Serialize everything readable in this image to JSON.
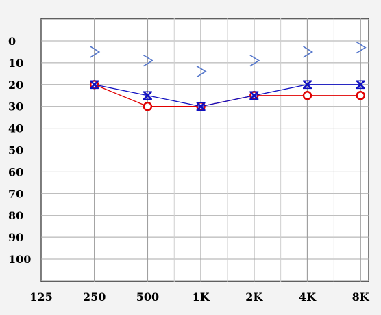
{
  "chart_data": {
    "type": "line",
    "title": "",
    "xlabel": "",
    "ylabel": "",
    "x_tick_labels": [
      "125",
      "250",
      "500",
      "1K",
      "2K",
      "4K",
      "8K"
    ],
    "y_tick_labels": [
      "0",
      "10",
      "20",
      "30",
      "40",
      "50",
      "60",
      "70",
      "80",
      "90",
      "100"
    ],
    "ylim": [
      -10,
      110
    ],
    "y_inverted": true,
    "grid": true,
    "series": [
      {
        "marker": "circle",
        "color": "#e00000",
        "points": [
          {
            "x": "250",
            "y": 20
          },
          {
            "x": "500",
            "y": 30
          },
          {
            "x": "1K",
            "y": 30
          },
          {
            "x": "2K",
            "y": 25
          },
          {
            "x": "4K",
            "y": 25
          },
          {
            "x": "8K",
            "y": 25
          }
        ]
      },
      {
        "marker": "x",
        "color": "#1010c0",
        "points": [
          {
            "x": "250",
            "y": 20
          },
          {
            "x": "500",
            "y": 25
          },
          {
            "x": "1K",
            "y": 30
          },
          {
            "x": "2K",
            "y": 25
          },
          {
            "x": "4K",
            "y": 20
          },
          {
            "x": "8K",
            "y": 20
          }
        ]
      },
      {
        "marker": "chevron-right",
        "color": "#5577cc",
        "connected": false,
        "points": [
          {
            "x": "250",
            "y": 5
          },
          {
            "x": "500",
            "y": 9
          },
          {
            "x": "1K",
            "y": 14
          },
          {
            "x": "2K",
            "y": 9
          },
          {
            "x": "4K",
            "y": 5
          },
          {
            "x": "8K",
            "y": 3
          }
        ]
      }
    ]
  }
}
